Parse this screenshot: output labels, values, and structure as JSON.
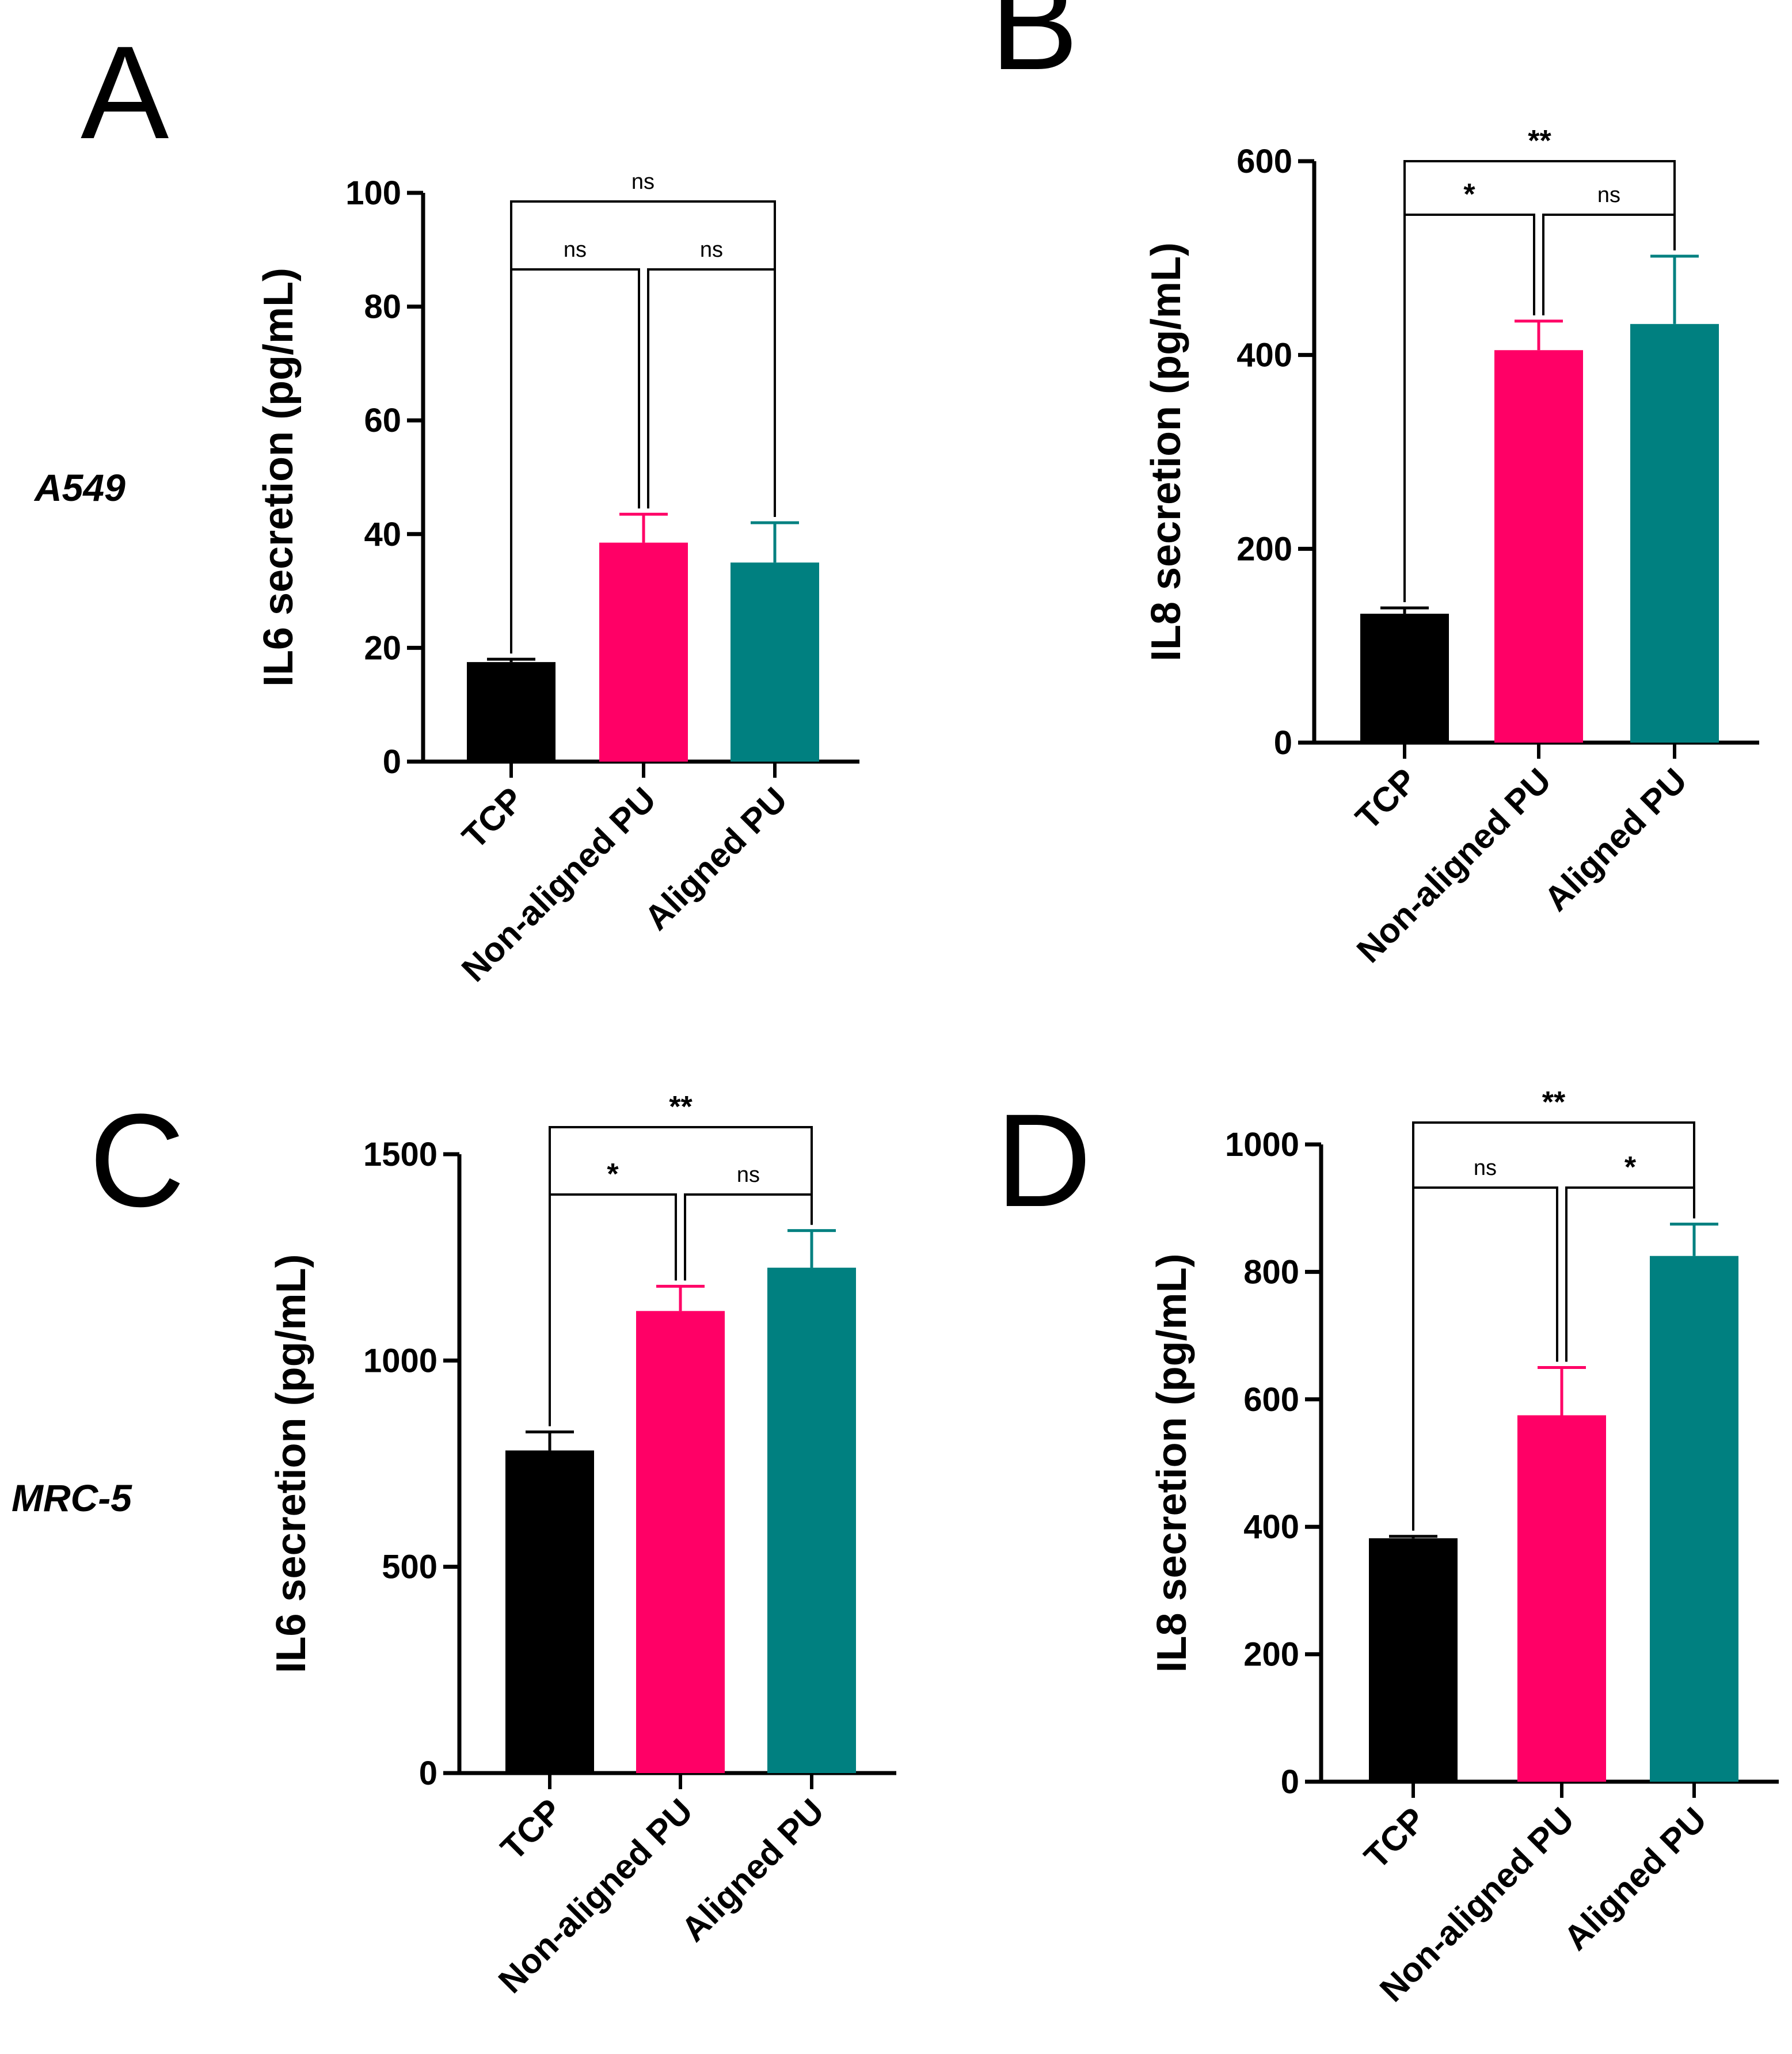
{
  "row_labels": [
    "A549",
    "MRC-5"
  ],
  "colors": {
    "TCP": "#000000",
    "Non-aligned PU": "#ff0066",
    "Aligned PU": "#008080"
  },
  "chart_data": [
    {
      "panel": "A",
      "type": "bar",
      "categories": [
        "TCP",
        "Non-aligned PU",
        "Aligned PU"
      ],
      "values": [
        17.5,
        38.5,
        35
      ],
      "errors": [
        0.5,
        5,
        7
      ],
      "ylabel": "IL6 secretion (pg/mL)",
      "ylim": [
        0,
        100
      ],
      "yticks": [
        0,
        20,
        40,
        60,
        80,
        100
      ],
      "significance": [
        {
          "pair": [
            0,
            1
          ],
          "label": "ns"
        },
        {
          "pair": [
            1,
            2
          ],
          "label": "ns"
        },
        {
          "pair": [
            0,
            2
          ],
          "label": "ns"
        }
      ]
    },
    {
      "panel": "B",
      "type": "bar",
      "categories": [
        "TCP",
        "Non-aligned PU",
        "Aligned PU"
      ],
      "values": [
        133,
        405,
        432
      ],
      "errors": [
        6,
        30,
        70
      ],
      "ylabel": "IL8 secretion (pg/mL)",
      "ylim": [
        0,
        600
      ],
      "yticks": [
        0,
        200,
        400,
        600
      ],
      "significance": [
        {
          "pair": [
            0,
            1
          ],
          "label": "*"
        },
        {
          "pair": [
            1,
            2
          ],
          "label": "ns"
        },
        {
          "pair": [
            0,
            2
          ],
          "label": "**"
        }
      ]
    },
    {
      "panel": "C",
      "type": "bar",
      "categories": [
        "TCP",
        "Non-aligned PU",
        "Aligned PU"
      ],
      "values": [
        782,
        1120,
        1225
      ],
      "errors": [
        45,
        60,
        90
      ],
      "ylabel": "IL6 secretion (pg/mL)",
      "ylim": [
        0,
        1500
      ],
      "yticks": [
        0,
        500,
        1000,
        1500
      ],
      "significance": [
        {
          "pair": [
            0,
            1
          ],
          "label": "*"
        },
        {
          "pair": [
            1,
            2
          ],
          "label": "ns"
        },
        {
          "pair": [
            0,
            2
          ],
          "label": "**"
        }
      ]
    },
    {
      "panel": "D",
      "type": "bar",
      "categories": [
        "TCP",
        "Non-aligned PU",
        "Aligned PU"
      ],
      "values": [
        382,
        575,
        825
      ],
      "errors": [
        3,
        75,
        50
      ],
      "ylabel": "IL8 secretion (pg/mL)",
      "ylim": [
        0,
        1000
      ],
      "yticks": [
        0,
        200,
        400,
        600,
        800,
        1000
      ],
      "significance": [
        {
          "pair": [
            0,
            1
          ],
          "label": "ns"
        },
        {
          "pair": [
            1,
            2
          ],
          "label": "*"
        },
        {
          "pair": [
            0,
            2
          ],
          "label": "**"
        }
      ]
    }
  ]
}
